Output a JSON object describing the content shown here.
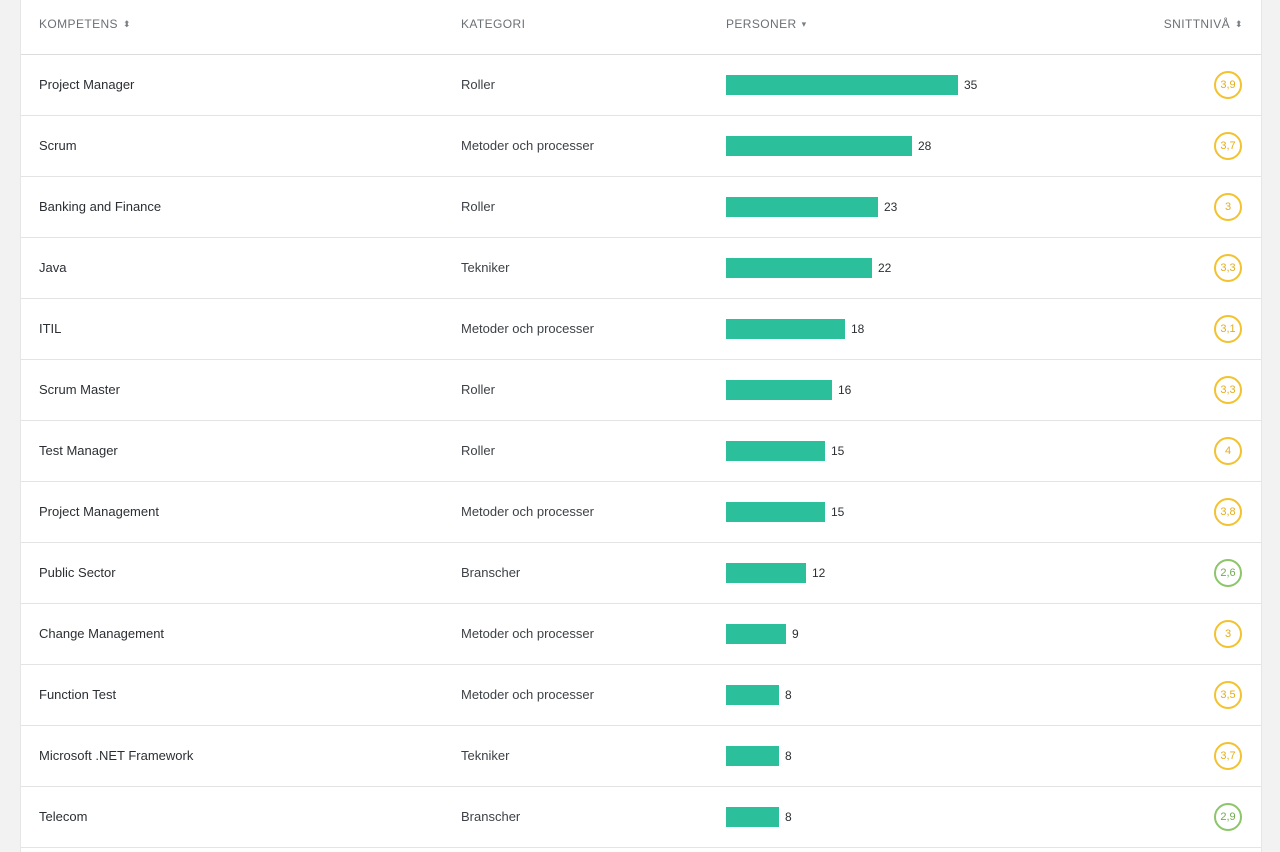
{
  "header": {
    "skill": "KOMPETENS",
    "category": "KATEGORI",
    "persons": "PERSONER",
    "avg": "SNITTNIVÅ",
    "sort_both_icon": "⬍",
    "sort_down_icon": "▾"
  },
  "max_persons": 35,
  "colors": {
    "bar": "#2bbf9c",
    "badge_yellow": "#f2c230",
    "badge_green": "#8cc56a"
  },
  "rows": [
    {
      "skill": "Project Manager",
      "category": "Roller",
      "persons": 35,
      "persons_label": "35",
      "avg": "3,9",
      "level": "yellow"
    },
    {
      "skill": "Scrum",
      "category": "Metoder och processer",
      "persons": 28,
      "persons_label": "28",
      "avg": "3,7",
      "level": "yellow"
    },
    {
      "skill": "Banking and Finance",
      "category": "Roller",
      "persons": 23,
      "persons_label": "23",
      "avg": "3",
      "level": "yellow"
    },
    {
      "skill": "Java",
      "category": "Tekniker",
      "persons": 22,
      "persons_label": "22",
      "avg": "3,3",
      "level": "yellow"
    },
    {
      "skill": "ITIL",
      "category": "Metoder och processer",
      "persons": 18,
      "persons_label": "18",
      "avg": "3,1",
      "level": "yellow"
    },
    {
      "skill": "Scrum Master",
      "category": "Roller",
      "persons": 16,
      "persons_label": "16",
      "avg": "3,3",
      "level": "yellow"
    },
    {
      "skill": "Test Manager",
      "category": "Roller",
      "persons": 15,
      "persons_label": "15",
      "avg": "4",
      "level": "yellow"
    },
    {
      "skill": "Project Management",
      "category": "Metoder och processer",
      "persons": 15,
      "persons_label": "15",
      "avg": "3,8",
      "level": "yellow"
    },
    {
      "skill": "Public Sector",
      "category": "Branscher",
      "persons": 12,
      "persons_label": "12",
      "avg": "2,6",
      "level": "green"
    },
    {
      "skill": "Change Management",
      "category": "Metoder och processer",
      "persons": 9,
      "persons_label": "9",
      "avg": "3",
      "level": "yellow"
    },
    {
      "skill": "Function Test",
      "category": "Metoder och processer",
      "persons": 8,
      "persons_label": "8",
      "avg": "3,5",
      "level": "yellow"
    },
    {
      "skill": "Microsoft .NET Framework",
      "category": "Tekniker",
      "persons": 8,
      "persons_label": "8",
      "avg": "3,7",
      "level": "yellow"
    },
    {
      "skill": "Telecom",
      "category": "Branscher",
      "persons": 8,
      "persons_label": "8",
      "avg": "2,9",
      "level": "green"
    }
  ]
}
